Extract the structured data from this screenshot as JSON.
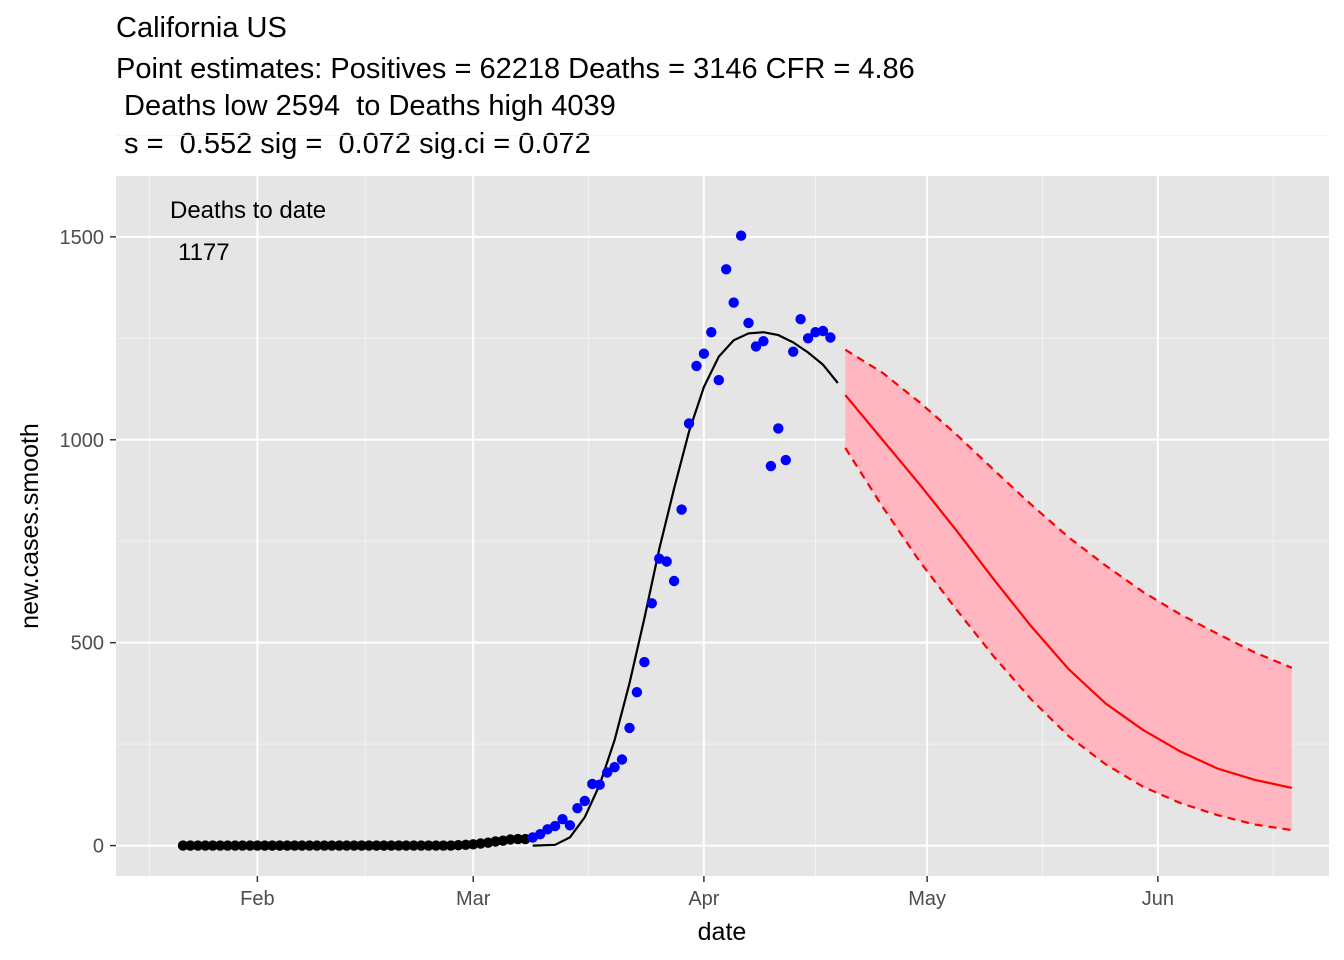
{
  "chart_data": {
    "type": "scatter",
    "title_lines": [
      "California US",
      "Point estimates: Positives = 62218 Deaths = 3146 CFR = 4.86",
      " Deaths low 2594  to Deaths high 4039",
      " s =  0.552 sig =  0.072 sig.ci = 0.072"
    ],
    "xlabel": "date",
    "ylabel": "new.cases.smooth",
    "x_type": "date",
    "xlim": [
      "2020-01-13",
      "2020-06-24"
    ],
    "ylim": [
      -75,
      1650
    ],
    "x_ticks": [
      {
        "date": "2020-02-01",
        "label": "Feb"
      },
      {
        "date": "2020-03-01",
        "label": "Mar"
      },
      {
        "date": "2020-04-01",
        "label": "Apr"
      },
      {
        "date": "2020-05-01",
        "label": "May"
      },
      {
        "date": "2020-06-01",
        "label": "Jun"
      }
    ],
    "y_ticks": [
      0,
      500,
      1000,
      1500
    ],
    "grid": true,
    "background": "#e5e5e5",
    "annotation": {
      "line1": "Deaths to date",
      "line2": "1177"
    },
    "series": [
      {
        "style": "points",
        "color": "#000000",
        "points": [
          [
            "2020-01-22",
            0
          ],
          [
            "2020-01-23",
            0
          ],
          [
            "2020-01-24",
            0
          ],
          [
            "2020-01-25",
            0
          ],
          [
            "2020-01-26",
            0
          ],
          [
            "2020-01-27",
            0
          ],
          [
            "2020-01-28",
            0
          ],
          [
            "2020-01-29",
            0
          ],
          [
            "2020-01-30",
            0
          ],
          [
            "2020-01-31",
            0
          ],
          [
            "2020-02-01",
            0
          ],
          [
            "2020-02-02",
            0
          ],
          [
            "2020-02-03",
            0
          ],
          [
            "2020-02-04",
            0
          ],
          [
            "2020-02-05",
            0
          ],
          [
            "2020-02-06",
            0
          ],
          [
            "2020-02-07",
            0
          ],
          [
            "2020-02-08",
            0
          ],
          [
            "2020-02-09",
            0
          ],
          [
            "2020-02-10",
            0
          ],
          [
            "2020-02-11",
            0
          ],
          [
            "2020-02-12",
            0
          ],
          [
            "2020-02-13",
            0
          ],
          [
            "2020-02-14",
            0
          ],
          [
            "2020-02-15",
            0
          ],
          [
            "2020-02-16",
            0
          ],
          [
            "2020-02-17",
            0
          ],
          [
            "2020-02-18",
            0
          ],
          [
            "2020-02-19",
            0
          ],
          [
            "2020-02-20",
            0
          ],
          [
            "2020-02-21",
            0
          ],
          [
            "2020-02-22",
            0
          ],
          [
            "2020-02-23",
            0
          ],
          [
            "2020-02-24",
            0
          ],
          [
            "2020-02-25",
            0
          ],
          [
            "2020-02-26",
            0
          ],
          [
            "2020-02-27",
            0
          ],
          [
            "2020-02-28",
            1
          ],
          [
            "2020-02-29",
            2
          ],
          [
            "2020-03-01",
            3
          ],
          [
            "2020-03-02",
            5
          ],
          [
            "2020-03-03",
            7
          ],
          [
            "2020-03-04",
            10
          ],
          [
            "2020-03-05",
            12
          ],
          [
            "2020-03-06",
            15
          ],
          [
            "2020-03-07",
            16
          ],
          [
            "2020-03-08",
            16
          ]
        ]
      },
      {
        "style": "points",
        "color": "#0000ff",
        "points": [
          [
            "2020-03-09",
            20
          ],
          [
            "2020-03-10",
            28
          ],
          [
            "2020-03-11",
            40
          ],
          [
            "2020-03-12",
            48
          ],
          [
            "2020-03-13",
            65
          ],
          [
            "2020-03-14",
            50
          ],
          [
            "2020-03-15",
            92
          ],
          [
            "2020-03-16",
            110
          ],
          [
            "2020-03-17",
            152
          ],
          [
            "2020-03-18",
            150
          ],
          [
            "2020-03-19",
            180
          ],
          [
            "2020-03-20",
            193
          ],
          [
            "2020-03-21",
            212
          ],
          [
            "2020-03-22",
            290
          ],
          [
            "2020-03-23",
            378
          ],
          [
            "2020-03-24",
            452
          ],
          [
            "2020-03-25",
            597
          ],
          [
            "2020-03-26",
            707
          ],
          [
            "2020-03-27",
            700
          ],
          [
            "2020-03-28",
            652
          ],
          [
            "2020-03-29",
            828
          ],
          [
            "2020-03-30",
            1040
          ],
          [
            "2020-03-31",
            1182
          ],
          [
            "2020-04-01",
            1212
          ],
          [
            "2020-04-02",
            1265
          ],
          [
            "2020-04-03",
            1147
          ],
          [
            "2020-04-04",
            1420
          ],
          [
            "2020-04-05",
            1338
          ],
          [
            "2020-04-06",
            1503
          ],
          [
            "2020-04-07",
            1288
          ],
          [
            "2020-04-08",
            1230
          ],
          [
            "2020-04-09",
            1243
          ],
          [
            "2020-04-10",
            935
          ],
          [
            "2020-04-11",
            1028
          ],
          [
            "2020-04-12",
            950
          ],
          [
            "2020-04-13",
            1217
          ],
          [
            "2020-04-14",
            1297
          ],
          [
            "2020-04-15",
            1250
          ],
          [
            "2020-04-16",
            1265
          ],
          [
            "2020-04-17",
            1268
          ],
          [
            "2020-04-18",
            1252
          ]
        ]
      },
      {
        "style": "line",
        "color": "#000000",
        "points": [
          [
            "2020-03-09",
            0
          ],
          [
            "2020-03-12",
            2
          ],
          [
            "2020-03-14",
            20
          ],
          [
            "2020-03-16",
            70
          ],
          [
            "2020-03-18",
            150
          ],
          [
            "2020-03-20",
            260
          ],
          [
            "2020-03-22",
            400
          ],
          [
            "2020-03-24",
            560
          ],
          [
            "2020-03-26",
            730
          ],
          [
            "2020-03-28",
            880
          ],
          [
            "2020-03-30",
            1020
          ],
          [
            "2020-04-01",
            1130
          ],
          [
            "2020-04-03",
            1205
          ],
          [
            "2020-04-05",
            1245
          ],
          [
            "2020-04-07",
            1262
          ],
          [
            "2020-04-09",
            1265
          ],
          [
            "2020-04-11",
            1258
          ],
          [
            "2020-04-13",
            1240
          ],
          [
            "2020-04-15",
            1215
          ],
          [
            "2020-04-17",
            1185
          ],
          [
            "2020-04-19",
            1140
          ]
        ]
      },
      {
        "style": "ribbon",
        "fill": "#ffb6c1",
        "stroke": "#ff0000",
        "upper": [
          [
            "2020-04-20",
            1222
          ],
          [
            "2020-04-25",
            1165
          ],
          [
            "2020-04-30",
            1092
          ],
          [
            "2020-05-05",
            1012
          ],
          [
            "2020-05-10",
            925
          ],
          [
            "2020-05-15",
            840
          ],
          [
            "2020-05-20",
            760
          ],
          [
            "2020-05-25",
            690
          ],
          [
            "2020-05-30",
            625
          ],
          [
            "2020-06-04",
            570
          ],
          [
            "2020-06-09",
            522
          ],
          [
            "2020-06-14",
            476
          ],
          [
            "2020-06-19",
            438
          ]
        ],
        "lower": [
          [
            "2020-04-20",
            980
          ],
          [
            "2020-04-25",
            835
          ],
          [
            "2020-04-30",
            700
          ],
          [
            "2020-05-05",
            580
          ],
          [
            "2020-05-10",
            465
          ],
          [
            "2020-05-15",
            360
          ],
          [
            "2020-05-20",
            270
          ],
          [
            "2020-05-25",
            200
          ],
          [
            "2020-05-30",
            145
          ],
          [
            "2020-06-04",
            105
          ],
          [
            "2020-06-09",
            75
          ],
          [
            "2020-06-14",
            52
          ],
          [
            "2020-06-19",
            38
          ]
        ]
      },
      {
        "style": "line",
        "color": "#ff0000",
        "points": [
          [
            "2020-04-20",
            1110
          ],
          [
            "2020-04-25",
            1000
          ],
          [
            "2020-04-30",
            890
          ],
          [
            "2020-05-05",
            775
          ],
          [
            "2020-05-10",
            655
          ],
          [
            "2020-05-15",
            540
          ],
          [
            "2020-05-20",
            435
          ],
          [
            "2020-05-25",
            350
          ],
          [
            "2020-05-30",
            285
          ],
          [
            "2020-06-04",
            232
          ],
          [
            "2020-06-09",
            190
          ],
          [
            "2020-06-14",
            162
          ],
          [
            "2020-06-19",
            142
          ]
        ]
      }
    ]
  }
}
